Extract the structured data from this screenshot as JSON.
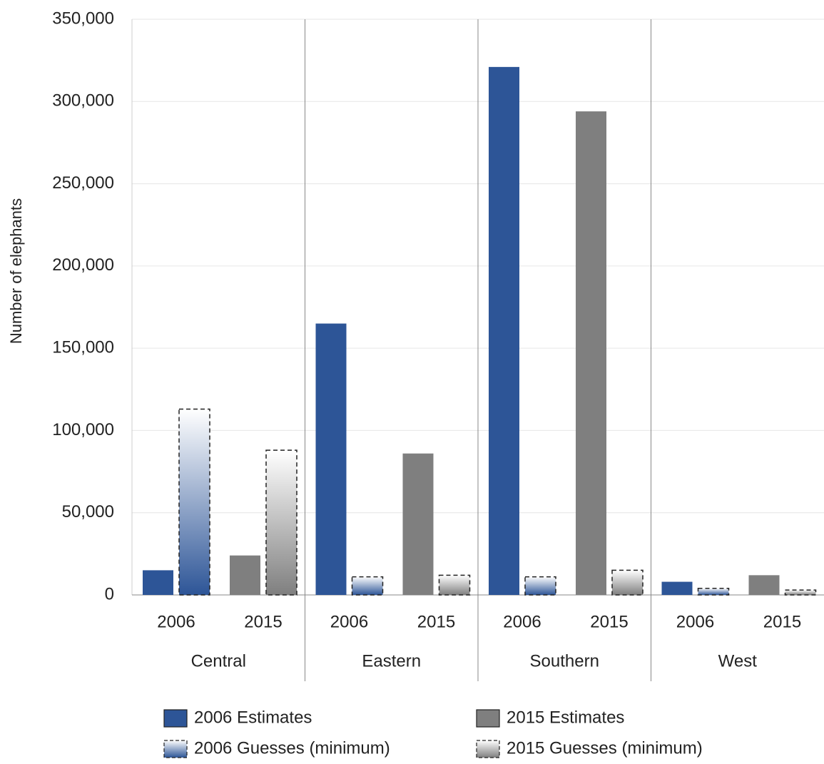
{
  "chart_data": {
    "type": "bar",
    "y_axis_title": "Number of elephants",
    "groups": [
      {
        "name": "Central",
        "categories": [
          "2006",
          "2015"
        ]
      },
      {
        "name": "Eastern",
        "categories": [
          "2006",
          "2015"
        ]
      },
      {
        "name": "Southern",
        "categories": [
          "2006",
          "2015"
        ]
      },
      {
        "name": "West",
        "categories": [
          "2006",
          "2015"
        ]
      }
    ],
    "series": [
      {
        "name": "2006 Estimates",
        "color": "#2d5597",
        "pattern": "solid",
        "values": [
          15000,
          165000,
          321000,
          8000
        ]
      },
      {
        "name": "2006 Guesses (minimum)",
        "color": "#2d5597",
        "pattern": "dashed",
        "values": [
          113000,
          11000,
          11000,
          4000
        ]
      },
      {
        "name": "2015 Estimates",
        "color": "#7f7f7f",
        "pattern": "solid",
        "values": [
          24000,
          86000,
          294000,
          12000
        ]
      },
      {
        "name": "2015 Guesses (minimum)",
        "color": "#7f7f7f",
        "pattern": "dashed",
        "values": [
          88000,
          12000,
          15000,
          3000
        ]
      }
    ],
    "ylim": [
      0,
      350000
    ],
    "yticks": [
      0,
      {
        "value": 50000,
        "label": "50,000"
      },
      {
        "value": 100000,
        "label": "100,000"
      },
      {
        "value": 150000,
        "label": "150,000"
      },
      {
        "value": 200000,
        "label": "200,000"
      },
      {
        "value": 250000,
        "label": "250,000"
      },
      {
        "value": 300000,
        "label": "300,000"
      },
      {
        "value": 350000,
        "label": "350,000"
      }
    ],
    "grid": true
  }
}
